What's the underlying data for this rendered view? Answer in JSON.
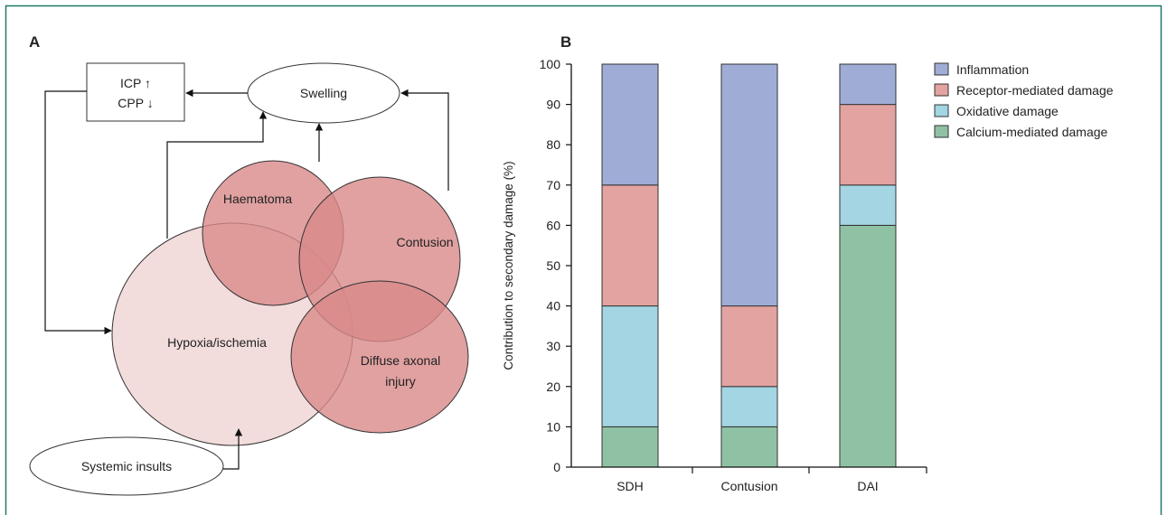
{
  "colors": {
    "frame": "#1b7a6a",
    "inflammation": "#9fadd6",
    "receptor": "#e3a3a0",
    "oxidative": "#a3d5e3",
    "calcium": "#8fc2a4",
    "hypoxia_fill": "#f2dcdc",
    "lesion_fill": "#d98a8a"
  },
  "panel_a": {
    "letter": "A",
    "icp_line1": "ICP ↑",
    "icp_line2": "CPP ↓",
    "swelling": "Swelling",
    "haematoma": "Haematoma",
    "contusion": "Contusion",
    "hypoxia": "Hypoxia/ischemia",
    "dai_line1": "Diffuse axonal",
    "dai_line2": "injury",
    "systemic": "Systemic insults"
  },
  "panel_b": {
    "letter": "B"
  },
  "chart_data": {
    "type": "bar",
    "stacked": true,
    "categories": [
      "SDH",
      "Contusion",
      "DAI"
    ],
    "series": [
      {
        "name": "Calcium-mediated damage",
        "values": [
          10,
          10,
          60
        ],
        "color": "#8fc2a4"
      },
      {
        "name": "Oxidative damage",
        "values": [
          30,
          10,
          10
        ],
        "color": "#a3d5e3"
      },
      {
        "name": "Receptor-mediated damage",
        "values": [
          30,
          20,
          20
        ],
        "color": "#e3a3a0"
      },
      {
        "name": "Inflammation",
        "values": [
          30,
          60,
          10
        ],
        "color": "#9fadd6"
      }
    ],
    "legend_order": [
      "Inflammation",
      "Receptor-mediated damage",
      "Oxidative damage",
      "Calcium-mediated damage"
    ],
    "ylabel": "Contribution to secondary damage (%)",
    "xlabel": "",
    "ylim": [
      0,
      100
    ],
    "yticks": [
      0,
      10,
      20,
      30,
      40,
      50,
      60,
      70,
      80,
      90,
      100
    ],
    "legend_position": "top-right",
    "grid": false
  }
}
